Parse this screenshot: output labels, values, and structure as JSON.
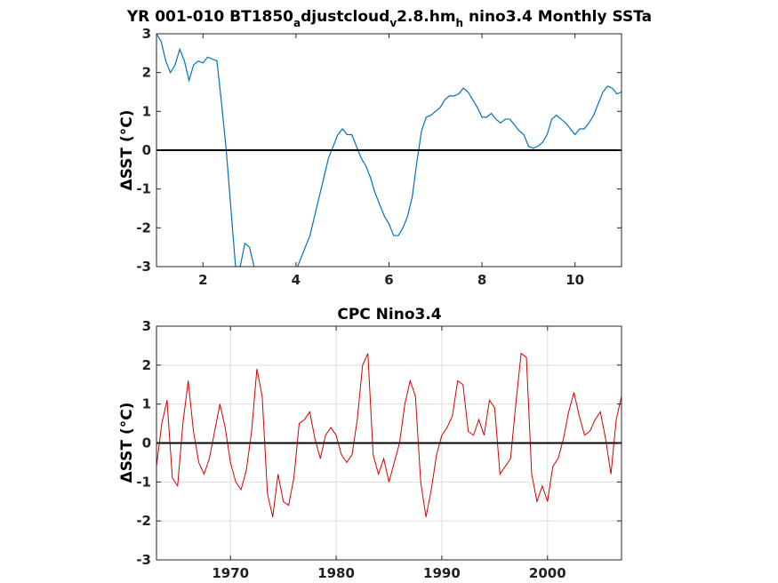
{
  "chart_data": [
    {
      "type": "line",
      "title_parts": [
        "YR 001-010 BT1850",
        "a",
        "djustcloud",
        "v",
        "2.8.hm",
        "h",
        " nino3.4 Monthly SSTa"
      ],
      "ylabel": "ΔSST (°C)",
      "xlim": [
        1,
        11
      ],
      "ylim": [
        -3,
        3
      ],
      "xticks": [
        2,
        4,
        6,
        8,
        10
      ],
      "yticks": [
        -3,
        -2,
        -1,
        0,
        1,
        2,
        3
      ],
      "grid": false,
      "reference_line": 0,
      "series": [
        {
          "color": "#0072BD",
          "x": [
            1.0,
            1.1,
            1.2,
            1.3,
            1.4,
            1.5,
            1.6,
            1.7,
            1.8,
            1.9,
            2.0,
            2.1,
            2.2,
            2.3,
            2.4,
            2.5,
            2.6,
            2.7,
            2.8,
            2.9,
            3.0,
            3.1,
            3.2,
            3.3,
            3.4,
            3.5,
            3.6,
            3.7,
            3.8,
            3.9,
            4.0,
            4.1,
            4.2,
            4.3,
            4.4,
            4.5,
            4.6,
            4.7,
            4.8,
            4.9,
            5.0,
            5.1,
            5.2,
            5.3,
            5.4,
            5.5,
            5.6,
            5.7,
            5.8,
            5.9,
            6.0,
            6.1,
            6.2,
            6.3,
            6.4,
            6.5,
            6.6,
            6.7,
            6.8,
            6.9,
            7.0,
            7.1,
            7.2,
            7.3,
            7.4,
            7.5,
            7.6,
            7.7,
            7.8,
            7.9,
            8.0,
            8.1,
            8.2,
            8.3,
            8.4,
            8.5,
            8.6,
            8.7,
            8.8,
            8.9,
            9.0,
            9.1,
            9.2,
            9.3,
            9.4,
            9.5,
            9.6,
            9.7,
            9.8,
            9.9,
            10.0,
            10.1,
            10.2,
            10.3,
            10.4,
            10.5,
            10.6,
            10.7,
            10.8,
            10.9,
            11.0
          ],
          "y": [
            3.0,
            2.8,
            2.3,
            2.0,
            2.2,
            2.6,
            2.3,
            1.8,
            2.2,
            2.3,
            2.25,
            2.4,
            2.35,
            2.3,
            1.2,
            0.0,
            -1.5,
            -3.0,
            -3.0,
            -2.4,
            -2.5,
            -3.0,
            -3.2,
            -3.3,
            -3.3,
            -3.2,
            -3.1,
            -3.0,
            -3.1,
            -3.2,
            -3.1,
            -2.8,
            -2.5,
            -2.2,
            -1.7,
            -1.2,
            -0.7,
            -0.2,
            0.1,
            0.4,
            0.55,
            0.4,
            0.4,
            0.1,
            -0.2,
            -0.4,
            -0.7,
            -1.1,
            -1.4,
            -1.7,
            -1.9,
            -2.2,
            -2.2,
            -2.0,
            -1.7,
            -1.2,
            -0.3,
            0.5,
            0.85,
            0.9,
            1.0,
            1.1,
            1.3,
            1.4,
            1.4,
            1.45,
            1.6,
            1.5,
            1.3,
            1.1,
            0.85,
            0.85,
            0.95,
            0.8,
            0.7,
            0.8,
            0.8,
            0.65,
            0.5,
            0.4,
            0.1,
            0.05,
            0.1,
            0.2,
            0.4,
            0.8,
            0.9,
            0.8,
            0.7,
            0.55,
            0.4,
            0.55,
            0.55,
            0.7,
            0.9,
            1.2,
            1.5,
            1.65,
            1.6,
            1.45,
            1.5
          ]
        }
      ]
    },
    {
      "type": "line",
      "title": "CPC Nino3.4",
      "ylabel": "ΔSST (°C)",
      "xlim": [
        1963,
        2007
      ],
      "ylim": [
        -3,
        3
      ],
      "xticks": [
        1970,
        1980,
        1990,
        2000
      ],
      "yticks": [
        -3,
        -2,
        -1,
        0,
        1,
        2,
        3
      ],
      "grid": true,
      "reference_line": 0,
      "series": [
        {
          "color": "#D40000",
          "x": [
            1963.0,
            1963.5,
            1964.0,
            1964.5,
            1965.0,
            1965.5,
            1966.0,
            1966.5,
            1967.0,
            1967.5,
            1968.0,
            1968.5,
            1969.0,
            1969.5,
            1970.0,
            1970.5,
            1971.0,
            1971.5,
            1972.0,
            1972.5,
            1973.0,
            1973.5,
            1974.0,
            1974.5,
            1975.0,
            1975.5,
            1976.0,
            1976.5,
            1977.0,
            1977.5,
            1978.0,
            1978.5,
            1979.0,
            1979.5,
            1980.0,
            1980.5,
            1981.0,
            1981.5,
            1982.0,
            1982.5,
            1983.0,
            1983.5,
            1984.0,
            1984.5,
            1985.0,
            1985.5,
            1986.0,
            1986.5,
            1987.0,
            1987.5,
            1988.0,
            1988.5,
            1989.0,
            1989.5,
            1990.0,
            1990.5,
            1991.0,
            1991.5,
            1992.0,
            1992.5,
            1993.0,
            1993.5,
            1994.0,
            1994.5,
            1995.0,
            1995.5,
            1996.0,
            1996.5,
            1997.0,
            1997.5,
            1998.0,
            1998.5,
            1999.0,
            1999.5,
            2000.0,
            2000.5,
            2001.0,
            2001.5,
            2002.0,
            2002.5,
            2003.0,
            2003.5,
            2004.0,
            2004.5,
            2005.0,
            2005.5,
            2006.0,
            2006.5,
            2007.0
          ],
          "y": [
            -0.6,
            0.5,
            1.1,
            -0.9,
            -1.1,
            0.5,
            1.6,
            0.3,
            -0.5,
            -0.8,
            -0.4,
            0.3,
            1.0,
            0.4,
            -0.5,
            -1.0,
            -1.2,
            -0.7,
            0.3,
            1.9,
            1.2,
            -1.3,
            -1.9,
            -0.8,
            -1.5,
            -1.6,
            -0.9,
            0.5,
            0.6,
            0.8,
            0.1,
            -0.4,
            0.2,
            0.4,
            0.2,
            -0.3,
            -0.5,
            -0.3,
            0.6,
            2.0,
            2.3,
            -0.3,
            -0.8,
            -0.4,
            -1.0,
            -0.5,
            0.0,
            1.0,
            1.6,
            1.2,
            -1.0,
            -1.9,
            -1.2,
            -0.3,
            0.2,
            0.4,
            0.7,
            1.6,
            1.5,
            0.3,
            0.2,
            0.6,
            0.2,
            1.1,
            0.9,
            -0.8,
            -0.6,
            -0.4,
            1.0,
            2.3,
            2.2,
            -0.8,
            -1.5,
            -1.1,
            -1.5,
            -0.6,
            -0.4,
            0.1,
            0.8,
            1.3,
            0.7,
            0.2,
            0.3,
            0.6,
            0.8,
            0.1,
            -0.8,
            0.6,
            1.2
          ]
        }
      ]
    }
  ]
}
